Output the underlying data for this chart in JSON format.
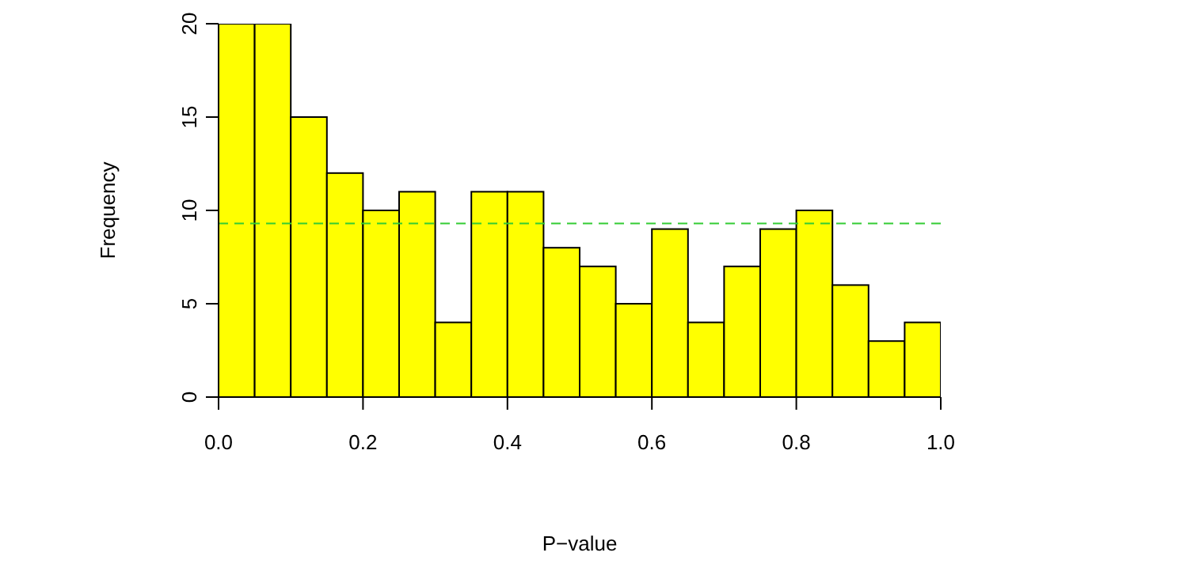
{
  "chart_data": {
    "type": "histogram",
    "xlabel": "P−value",
    "ylabel": "Frequency",
    "bins": [
      0,
      0.05,
      0.1,
      0.15,
      0.2,
      0.25,
      0.3,
      0.35,
      0.4,
      0.45,
      0.5,
      0.55,
      0.6,
      0.65,
      0.7,
      0.75,
      0.8,
      0.85,
      0.9,
      0.95,
      1
    ],
    "values": [
      20,
      20,
      15,
      12,
      10,
      11,
      4,
      11,
      11,
      8,
      7,
      5,
      9,
      4,
      7,
      9,
      10,
      6,
      3,
      4
    ],
    "color": "#ffff00",
    "xlim": [
      0,
      1
    ],
    "xticks": [
      {
        "value": 0,
        "label": "0.0"
      },
      {
        "value": 0.2,
        "label": "0.2"
      },
      {
        "value": 0.4,
        "label": "0.4"
      },
      {
        "value": 0.6,
        "label": "0.6"
      },
      {
        "value": 0.8,
        "label": "0.8"
      },
      {
        "value": 1,
        "label": "1.0"
      }
    ],
    "ylim": [
      0,
      20
    ],
    "yticks": [
      0,
      5,
      10,
      15,
      20
    ],
    "ref_lines": [
      {
        "axis": "y",
        "value": 9.3,
        "color": "#33cc33",
        "line_style": "dashed"
      }
    ]
  }
}
